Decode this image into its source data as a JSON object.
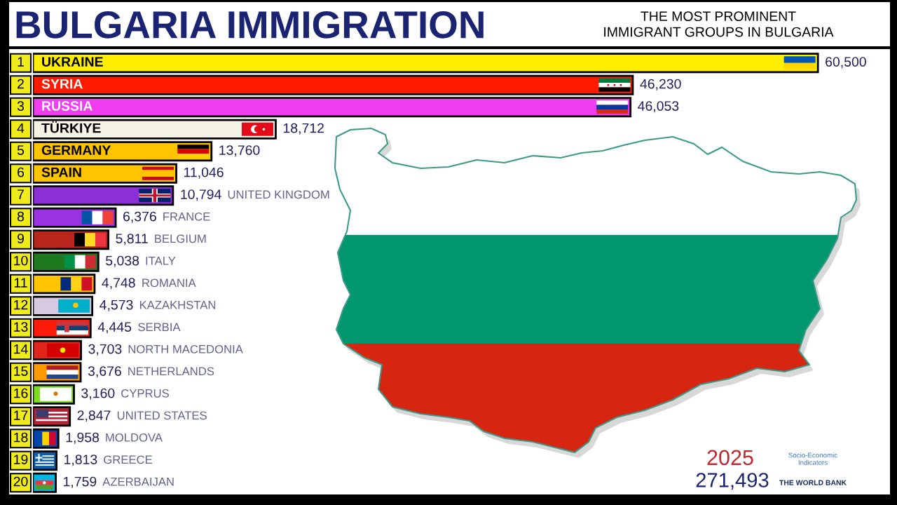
{
  "chart_data": {
    "type": "bar",
    "orientation": "horizontal",
    "title": "BULGARIA IMMIGRATION",
    "subtitle": "THE MOST PROMINENT\nIMMIGRANT GROUPS IN BULGARIA",
    "categories": [
      "UKRAINE",
      "SYRIA",
      "RUSSIA",
      "TÜRKIYE",
      "GERMANY",
      "SPAIN",
      "UNITED KINGDOM",
      "FRANCE",
      "BELGIUM",
      "ITALY",
      "ROMANIA",
      "KAZAKHSTAN",
      "SERBIA",
      "NORTH MACEDONIA",
      "NETHERLANDS",
      "CYPRUS",
      "UNITED STATES",
      "MOLDOVA",
      "GREECE",
      "AZERBAIJAN"
    ],
    "values": [
      60500,
      46230,
      46053,
      18712,
      13760,
      11046,
      10794,
      6376,
      5811,
      5038,
      4748,
      4573,
      4445,
      3703,
      3676,
      3160,
      2847,
      1958,
      1813,
      1759
    ],
    "value_labels": [
      "60,500",
      "46,230",
      "46,053",
      "18,712",
      "13,760",
      "11,046",
      "10,794",
      "6,376",
      "5,811",
      "5,038",
      "4,748",
      "4,573",
      "4,445",
      "3,703",
      "3,676",
      "3,160",
      "2,847",
      "1,958",
      "1,813",
      "1,759"
    ],
    "colors": [
      "#ffee00",
      "#ff1a00",
      "#f23cf2",
      "#f5f2e6",
      "#ffc400",
      "#ffc400",
      "#8b2fd6",
      "#9932e0",
      "#b8261e",
      "#1e7a1e",
      "#ffc400",
      "#d8c8e0",
      "#ff1a0a",
      "#e0251b",
      "#ff9900",
      "#7ddc1f",
      "#b22234",
      "#0046ae",
      "#0d5eaf",
      "#00b5e2"
    ],
    "xlim": [
      0,
      66000
    ],
    "tick_labels": false,
    "annotations": [
      "1",
      "2",
      "3",
      "4",
      "5",
      "6",
      "7",
      "8",
      "9",
      "10",
      "11",
      "12",
      "13",
      "14",
      "15",
      "16",
      "17",
      "18",
      "19",
      "20",
      "2025",
      "271,493",
      "Socio-Economic\nIndicators",
      "THE WORLD BANK"
    ]
  }
}
